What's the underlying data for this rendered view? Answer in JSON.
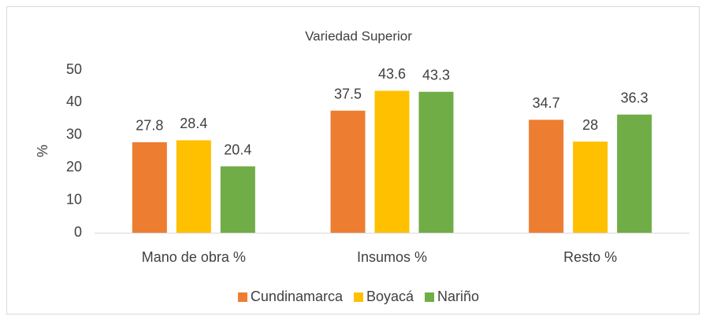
{
  "chart_data": {
    "type": "bar",
    "title": "Variedad Superior",
    "y_label": "%",
    "categories": [
      "Mano de obra %",
      "Insumos %",
      "Resto %"
    ],
    "series": [
      {
        "name": "Cundinamarca",
        "color": "#ed7d31",
        "values": [
          27.8,
          37.5,
          34.7
        ]
      },
      {
        "name": "Boyacá",
        "color": "#ffc000",
        "values": [
          28.4,
          43.6,
          28
        ]
      },
      {
        "name": "Nariño",
        "color": "#70ad47",
        "values": [
          20.4,
          43.3,
          36.3
        ]
      }
    ],
    "ylim": [
      0,
      50
    ],
    "yticks": [
      0,
      10,
      20,
      30,
      40,
      50
    ],
    "grid": false,
    "legend": "bottom"
  }
}
